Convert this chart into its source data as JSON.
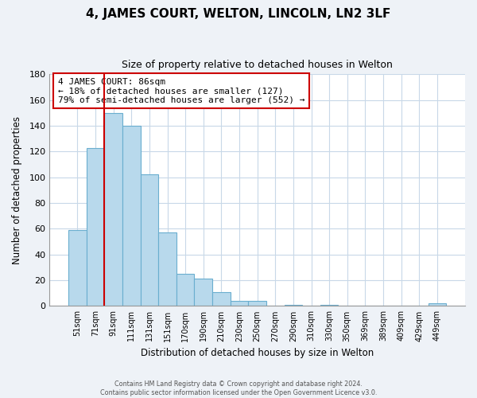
{
  "title": "4, JAMES COURT, WELTON, LINCOLN, LN2 3LF",
  "subtitle": "Size of property relative to detached houses in Welton",
  "xlabel": "Distribution of detached houses by size in Welton",
  "ylabel": "Number of detached properties",
  "bar_labels": [
    "51sqm",
    "71sqm",
    "91sqm",
    "111sqm",
    "131sqm",
    "151sqm",
    "170sqm",
    "190sqm",
    "210sqm",
    "230sqm",
    "250sqm",
    "270sqm",
    "290sqm",
    "310sqm",
    "330sqm",
    "350sqm",
    "369sqm",
    "389sqm",
    "409sqm",
    "429sqm",
    "449sqm"
  ],
  "bar_heights": [
    59,
    123,
    150,
    140,
    102,
    57,
    25,
    21,
    11,
    4,
    4,
    0,
    1,
    0,
    1,
    0,
    0,
    0,
    0,
    0,
    2
  ],
  "bar_color": "#b8d9ec",
  "bar_edge_color": "#6aaecf",
  "ylim": [
    0,
    180
  ],
  "yticks": [
    0,
    20,
    40,
    60,
    80,
    100,
    120,
    140,
    160,
    180
  ],
  "marker_bar_index": 2,
  "marker_color": "#cc0000",
  "annotation_title": "4 JAMES COURT: 86sqm",
  "annotation_line1": "← 18% of detached houses are smaller (127)",
  "annotation_line2": "79% of semi-detached houses are larger (552) →",
  "footer_line1": "Contains HM Land Registry data © Crown copyright and database right 2024.",
  "footer_line2": "Contains public sector information licensed under the Open Government Licence v3.0.",
  "background_color": "#eef2f7",
  "plot_background_color": "#ffffff",
  "grid_color": "#c8d8e8"
}
